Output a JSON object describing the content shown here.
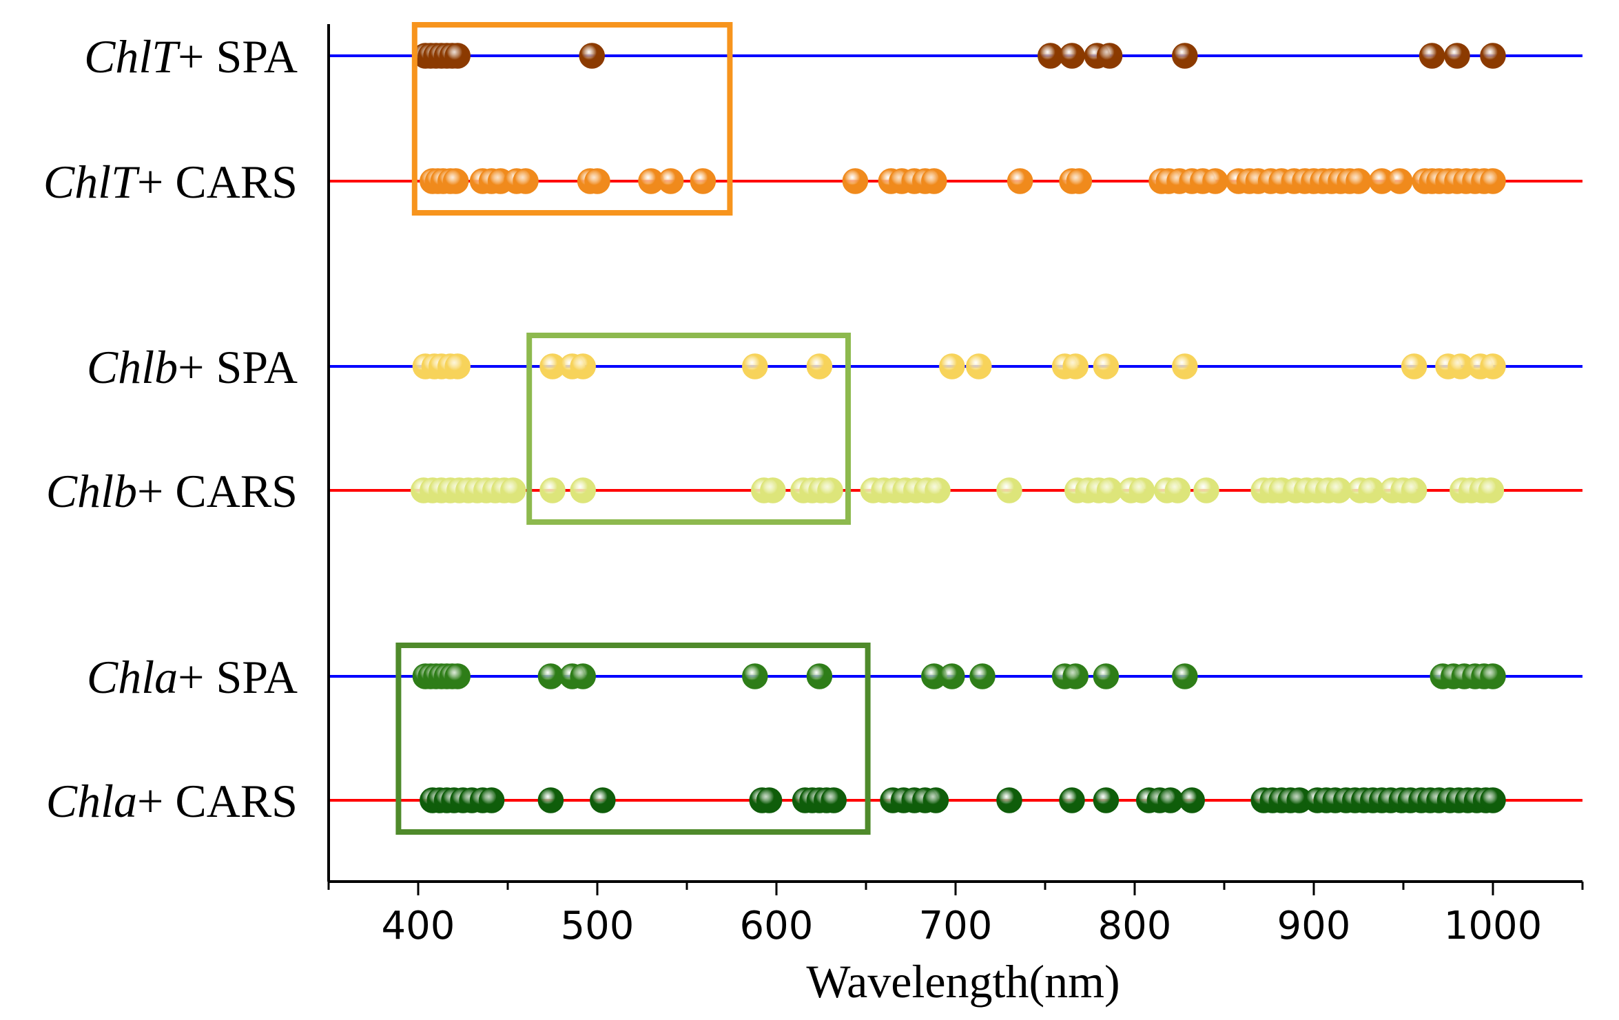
{
  "chart_data": {
    "type": "scatter",
    "xlabel": "Wavelength(nm)",
    "xlim": [
      350,
      1050
    ],
    "xticks": [
      "400",
      "500",
      "600",
      "700",
      "800",
      "900",
      "1000"
    ],
    "rows": [
      {
        "label_italic": "ChlT",
        "label_suffix": "+ SPA",
        "method": "SPA",
        "line_color": "#0000ff",
        "marker_color": "#8b3a00",
        "wavelengths": [
          404,
          407,
          410,
          413,
          416,
          419,
          422,
          497,
          753,
          765,
          779,
          786,
          828,
          966,
          980,
          1000
        ]
      },
      {
        "label_italic": "ChlT",
        "label_suffix": "+ CARS",
        "method": "CARS",
        "line_color": "#ff0000",
        "marker_color": "#f08a1c",
        "wavelengths": [
          408,
          411,
          414,
          418,
          421,
          436,
          441,
          446,
          455,
          460,
          496,
          500,
          530,
          541,
          559,
          644,
          664,
          670,
          677,
          683,
          688,
          736,
          765,
          769,
          815,
          819,
          825,
          832,
          838,
          845,
          858,
          864,
          869,
          876,
          882,
          889,
          895,
          900,
          905,
          910,
          915,
          920,
          925,
          938,
          948,
          962,
          966,
          970,
          975,
          980,
          985,
          990,
          995,
          1000
        ]
      },
      {
        "label_italic": "Chlb",
        "label_suffix": "+ SPA",
        "method": "SPA",
        "line_color": "#0000ff",
        "marker_color": "#f7d35a",
        "wavelengths": [
          404,
          409,
          413,
          418,
          422,
          475,
          486,
          492,
          588,
          624,
          698,
          713,
          761,
          767,
          784,
          828,
          956,
          975,
          982,
          993,
          1000
        ]
      },
      {
        "label_italic": "Chlb",
        "label_suffix": "+ CARS",
        "method": "CARS",
        "line_color": "#ff0000",
        "marker_color": "#dde57a",
        "wavelengths": [
          403,
          408,
          413,
          418,
          423,
          428,
          433,
          438,
          443,
          448,
          453,
          475,
          492,
          593,
          598,
          615,
          620,
          625,
          630,
          654,
          660,
          666,
          672,
          678,
          684,
          690,
          730,
          768,
          774,
          780,
          786,
          798,
          804,
          818,
          824,
          840,
          872,
          877,
          882,
          890,
          896,
          902,
          908,
          914,
          926,
          932,
          944,
          950,
          956,
          983,
          988,
          994,
          999
        ]
      },
      {
        "label_italic": "Chla",
        "label_suffix": "+ SPA",
        "method": "SPA",
        "line_color": "#0000ff",
        "marker_color": "#2e7d18",
        "wavelengths": [
          404,
          407,
          410,
          413,
          416,
          419,
          422,
          474,
          486,
          492,
          588,
          624,
          688,
          698,
          715,
          761,
          767,
          784,
          828,
          972,
          978,
          984,
          990,
          995,
          1000
        ]
      },
      {
        "label_italic": "Chla",
        "label_suffix": "+ CARS",
        "method": "CARS",
        "line_color": "#ff0000",
        "marker_color": "#0f5d0a",
        "wavelengths": [
          408,
          412,
          416,
          420,
          425,
          430,
          436,
          441,
          474,
          503,
          592,
          596,
          616,
          620,
          624,
          628,
          632,
          665,
          671,
          677,
          683,
          689,
          730,
          765,
          784,
          808,
          814,
          820,
          832,
          872,
          877,
          882,
          887,
          892,
          902,
          907,
          912,
          918,
          923,
          928,
          933,
          938,
          943,
          949,
          954,
          960,
          965,
          970,
          976,
          981,
          986,
          991,
          996,
          1000
        ]
      }
    ],
    "highlight_boxes": [
      {
        "rows": [
          "ChlT+ SPA",
          "ChlT+ CARS"
        ],
        "x_range": [
          398,
          574
        ],
        "color": "#f7941d"
      },
      {
        "rows": [
          "Chlb+ SPA",
          "Chlb+ CARS"
        ],
        "x_range": [
          462,
          640
        ],
        "color": "#8db94e"
      },
      {
        "rows": [
          "Chla+ SPA",
          "Chla+ CARS"
        ],
        "x_range": [
          389,
          651
        ],
        "color": "#4f8a2b"
      }
    ]
  }
}
